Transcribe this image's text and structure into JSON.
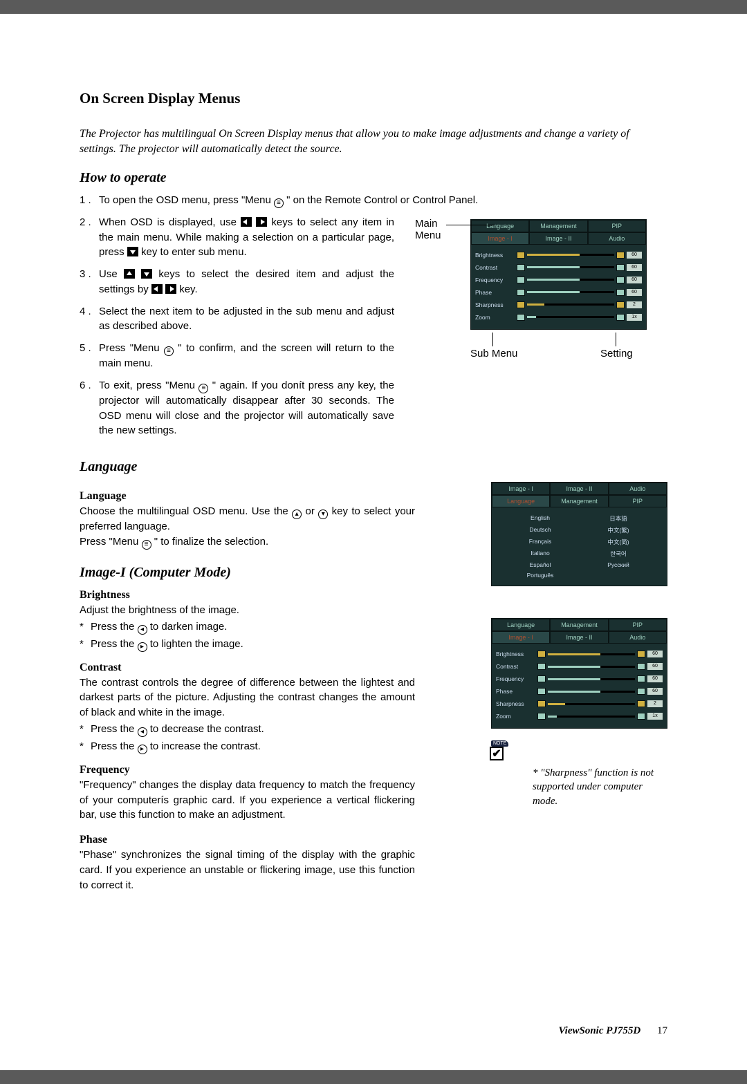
{
  "title": "On Screen Display Menus",
  "intro": "The Projector has multilingual On Screen Display menus that allow you to make image adjustments and change a variety of settings. The projector will automatically detect the source.",
  "howto_heading": "How to operate",
  "steps": [
    {
      "n": "1 .",
      "t": "To open the OSD menu, press \"Menu ⦾ \" on the Remote Control or Control Panel."
    },
    {
      "n": "2 .",
      "t": "When OSD is displayed, use ◀ ▶ keys to select any item in the main menu.  While making a selection on a particular page, press ▼ key to enter sub menu."
    },
    {
      "n": "3 .",
      "t": "Use ▲ ▼ keys to select the desired item and adjust the settings by ◀ ▶ key."
    },
    {
      "n": "4 .",
      "t": "Select the next item to be adjusted in the sub menu and adjust as described above."
    },
    {
      "n": "5 .",
      "t": "Press \"Menu ⦾ \" to confirm, and the screen will return to the main menu."
    },
    {
      "n": "6 .",
      "t": "To exit, press \"Menu ⦾ \" again. If you donít press any key, the projector will automatically disappear after 30 seconds. The OSD menu will close and the projector will automatically save the new settings."
    }
  ],
  "callouts": {
    "main": "Main Menu",
    "sub": "Sub Menu",
    "setting": "Setting"
  },
  "osd1": {
    "tabs_top": [
      "Language",
      "Management",
      "PIP"
    ],
    "tabs_bot": [
      "Image - I",
      "Image - II",
      "Audio"
    ],
    "active_tab": "Image - I",
    "rows": [
      {
        "label": "Brightness",
        "val": "60",
        "fill": 60,
        "color": "#d0b040"
      },
      {
        "label": "Contrast",
        "val": "60",
        "fill": 60,
        "color": "#9fd0c0"
      },
      {
        "label": "Frequency",
        "val": "60",
        "fill": 60,
        "color": "#9fd0c0"
      },
      {
        "label": "Phase",
        "val": "60",
        "fill": 60,
        "color": "#9fd0c0"
      },
      {
        "label": "Sharpness",
        "val": "2",
        "fill": 20,
        "color": "#d0b040"
      },
      {
        "label": "Zoom",
        "val": "1x",
        "fill": 10,
        "color": "#9fd0c0"
      }
    ]
  },
  "lang_heading": "Language",
  "lang_sub": "Language",
  "lang_body1": "Choose the multilingual OSD menu. Use the ▲ or ▼ key to select your preferred language.",
  "lang_body2": "Press \"Menu ⦾ \" to finalize the selection.",
  "osd2": {
    "tabs_top": [
      "Image - I",
      "Image - II",
      "Audio"
    ],
    "tabs_bot": [
      "Language",
      "Management",
      "PIP"
    ],
    "active_tab": "Language",
    "langs": [
      [
        "English",
        "日本語"
      ],
      [
        "Deutsch",
        "中文(繁)"
      ],
      [
        "Français",
        "中文(简)"
      ],
      [
        "Italiano",
        "한국어"
      ],
      [
        "Español",
        "Русский"
      ],
      [
        "Português",
        ""
      ]
    ]
  },
  "image1_heading": "Image-I  (Computer Mode)",
  "brightness_h": "Brightness",
  "brightness_t": "Adjust the brightness of the image.",
  "brightness_b": [
    "Press the ◀ to darken image.",
    "Press the ▶ to lighten the image."
  ],
  "contrast_h": "Contrast",
  "contrast_t": "The contrast controls the degree of difference between the lightest and darkest parts of the picture. Adjusting the contrast changes the amount of black and white in the image.",
  "contrast_b": [
    "Press the ◀ to decrease the contrast.",
    "Press the ▶ to increase the contrast."
  ],
  "frequency_h": "Frequency",
  "frequency_t": "\"Frequency\" changes the display data frequency to match the frequency of your computerís graphic card. If you experience a vertical flickering bar, use this function to make an adjustment.",
  "phase_h": "Phase",
  "phase_t": "\"Phase\" synchronizes the signal timing of the display with the graphic card. If you experience an unstable or flickering image, use this function to correct it.",
  "osd3_same_as": "osd1",
  "note_label": "NOTE",
  "note_text": "* \"Sharpness\" function is not supported under computer mode.",
  "footer_brand": "ViewSonic PJ755D",
  "footer_page": "17"
}
